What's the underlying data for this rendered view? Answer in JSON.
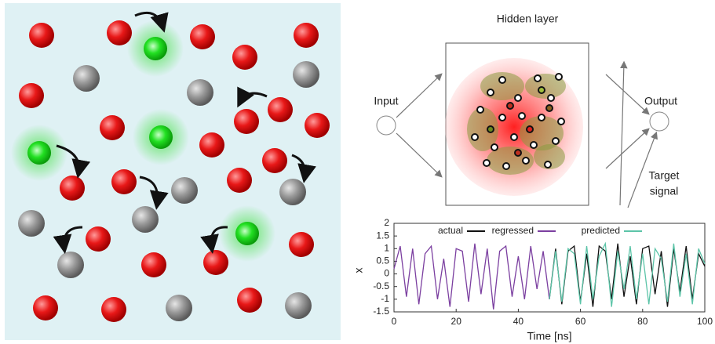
{
  "diagram": {
    "title": "Hidden layer",
    "input": "Input",
    "output": "Output",
    "target": [
      "Target",
      "signal"
    ]
  },
  "chart_data": {
    "type": "line",
    "xlabel": "Time [ns]",
    "ylabel": "x",
    "x": [
      0,
      2,
      4,
      6,
      8,
      10,
      12,
      14,
      16,
      18,
      20,
      22,
      24,
      26,
      28,
      30,
      32,
      34,
      36,
      38,
      40,
      42,
      44,
      46,
      48,
      50,
      52,
      54,
      56,
      58,
      60,
      62,
      64,
      66,
      68,
      70,
      72,
      74,
      76,
      78,
      80,
      82,
      84,
      86,
      88,
      90,
      92,
      94,
      96,
      98,
      100
    ],
    "series": [
      {
        "name": "actual",
        "color": "#111111",
        "values": [
          null,
          null,
          null,
          null,
          null,
          null,
          null,
          null,
          null,
          null,
          null,
          null,
          null,
          null,
          null,
          null,
          null,
          null,
          null,
          null,
          null,
          null,
          null,
          null,
          null,
          -1.0,
          1.0,
          -1.2,
          0.9,
          1.1,
          -1.1,
          0.8,
          -1.3,
          1.1,
          0.9,
          -1.0,
          1.2,
          -0.9,
          0.7,
          -1.2,
          1.0,
          1.1,
          -0.8,
          0.9,
          -1.3,
          1.0,
          -0.7,
          1.1,
          -1.0,
          0.8,
          0.3
        ]
      },
      {
        "name": "regressed",
        "color": "#7b3fa0",
        "values": [
          0.2,
          1.1,
          -0.9,
          1.0,
          -1.2,
          0.8,
          1.1,
          -1.0,
          0.6,
          -1.3,
          1.0,
          0.9,
          -1.1,
          1.2,
          -0.8,
          1.0,
          -1.4,
          0.9,
          1.1,
          -0.9,
          0.7,
          -1.0,
          1.1,
          -0.6,
          0.9,
          -1.0,
          null,
          null,
          null,
          null,
          null,
          null,
          null,
          null,
          null,
          null,
          null,
          null,
          null,
          null,
          null,
          null,
          null,
          null,
          null,
          null,
          null,
          null,
          null,
          null,
          null
        ]
      },
      {
        "name": "predicted",
        "color": "#5cc4a8",
        "values": [
          null,
          null,
          null,
          null,
          null,
          null,
          null,
          null,
          null,
          null,
          null,
          null,
          null,
          null,
          null,
          null,
          null,
          null,
          null,
          null,
          null,
          null,
          null,
          null,
          null,
          -1.0,
          0.9,
          -1.1,
          1.0,
          0.8,
          -1.2,
          1.1,
          -1.0,
          0.7,
          1.2,
          -1.3,
          0.9,
          -0.6,
          1.1,
          -1.0,
          0.8,
          -1.2,
          1.0,
          0.6,
          -1.1,
          1.2,
          -0.9,
          0.8,
          -1.2,
          1.0,
          0.4
        ]
      }
    ],
    "xlim": [
      0,
      100
    ],
    "xticks": [
      0,
      20,
      40,
      60,
      80,
      100
    ],
    "ylim": [
      -1.5,
      2
    ],
    "yticks": [
      -1.5,
      -1,
      -0.5,
      0,
      0.5,
      1,
      1.5,
      2
    ],
    "grid": false,
    "legend": "top"
  }
}
